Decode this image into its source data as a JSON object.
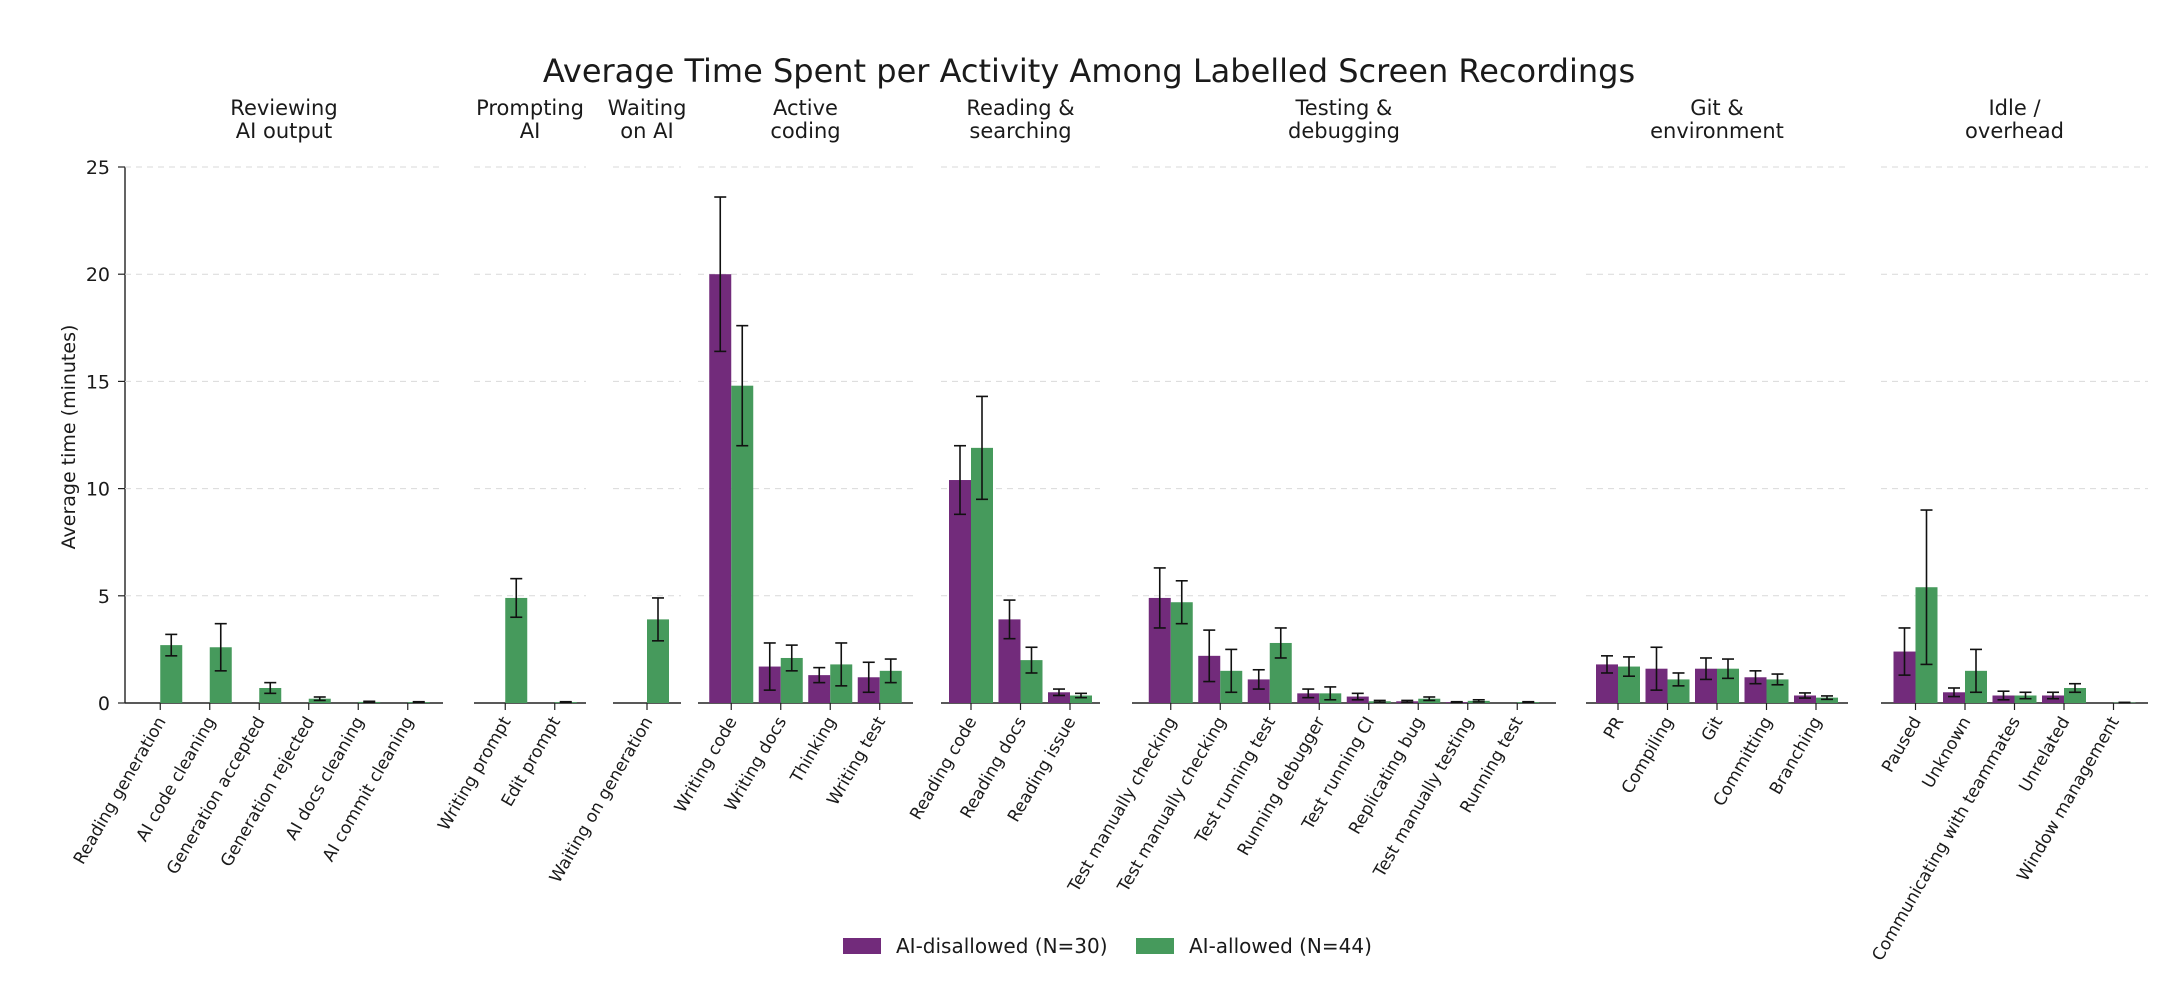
{
  "chart_data": {
    "type": "bar",
    "title": "Average Time Spent per Activity Among Labelled Screen Recordings",
    "ylabel": "Average time (minutes)",
    "ylim": [
      0,
      25
    ],
    "yticks": [
      0,
      5,
      10,
      15,
      20,
      25
    ],
    "grid": true,
    "legend_position": "bottom",
    "series": [
      {
        "name": "AI-disallowed (N=30)",
        "color": "#722b7b"
      },
      {
        "name": "AI-allowed (N=44)",
        "color": "#469a5c"
      }
    ],
    "groups": [
      {
        "title": [
          "Reviewing",
          "AI output"
        ],
        "categories": [
          "Reading generation",
          "AI code cleaning",
          "Generation accepted",
          "Generation rejected",
          "AI docs cleaning",
          "AI commit cleaning"
        ],
        "values": [
          [
            null,
            null,
            null,
            null,
            null,
            null
          ],
          [
            2.7,
            2.6,
            0.7,
            0.2,
            0.05,
            0.04
          ]
        ],
        "errors": [
          [
            null,
            null,
            null,
            null,
            null,
            null
          ],
          [
            0.5,
            1.1,
            0.25,
            0.08,
            0.03,
            0.02
          ]
        ]
      },
      {
        "title": [
          "Prompting",
          "AI"
        ],
        "categories": [
          "Writing prompt",
          "Edit prompt"
        ],
        "values": [
          [
            null,
            null
          ],
          [
            4.9,
            0.04
          ]
        ],
        "errors": [
          [
            null,
            null
          ],
          [
            0.9,
            0.02
          ]
        ]
      },
      {
        "title": [
          "Waiting",
          "on AI"
        ],
        "categories": [
          "Waiting on generation"
        ],
        "values": [
          [
            null
          ],
          [
            3.9
          ]
        ],
        "errors": [
          [
            null
          ],
          [
            1.0
          ]
        ]
      },
      {
        "title": [
          "Active",
          "coding"
        ],
        "categories": [
          "Writing code",
          "Writing docs",
          "Thinking",
          "Writing test"
        ],
        "values": [
          [
            20.0,
            1.7,
            1.3,
            1.2
          ],
          [
            14.8,
            2.1,
            1.8,
            1.5
          ]
        ],
        "errors": [
          [
            3.6,
            1.1,
            0.35,
            0.7
          ],
          [
            2.8,
            0.6,
            1.0,
            0.55
          ]
        ]
      },
      {
        "title": [
          "Reading &",
          "searching"
        ],
        "categories": [
          "Reading code",
          "Reading docs",
          "Reading issue"
        ],
        "values": [
          [
            10.4,
            3.9,
            0.5
          ],
          [
            11.9,
            2.0,
            0.35
          ]
        ],
        "errors": [
          [
            1.6,
            0.9,
            0.15
          ],
          [
            2.4,
            0.6,
            0.1
          ]
        ]
      },
      {
        "title": [
          "Testing &",
          "debugging"
        ],
        "categories": [
          "Test manually checking",
          "Test manually checking",
          "Test running test",
          "Running debugger",
          "Test running CI",
          "Replicating bug",
          "Test manually testing",
          "Running test"
        ],
        "values": [
          [
            4.9,
            2.2,
            1.1,
            0.45,
            0.3,
            0.08,
            0.04,
            0.0
          ],
          [
            4.7,
            1.5,
            2.8,
            0.45,
            0.08,
            0.2,
            0.1,
            0.04
          ]
        ],
        "errors": [
          [
            1.4,
            1.2,
            0.45,
            0.2,
            0.15,
            0.04,
            0.02,
            0.0
          ],
          [
            1.0,
            1.0,
            0.7,
            0.3,
            0.04,
            0.08,
            0.05,
            0.02
          ]
        ]
      },
      {
        "title": [
          "Git &",
          "environment"
        ],
        "categories": [
          "PR",
          "Compiling",
          "Git",
          "Committing",
          "Branching"
        ],
        "values": [
          [
            1.8,
            1.6,
            1.6,
            1.2,
            0.35
          ],
          [
            1.7,
            1.1,
            1.6,
            1.1,
            0.25
          ]
        ],
        "errors": [
          [
            0.4,
            1.0,
            0.5,
            0.3,
            0.12
          ],
          [
            0.45,
            0.3,
            0.45,
            0.25,
            0.08
          ]
        ]
      },
      {
        "title": [
          "Idle /",
          "overhead"
        ],
        "categories": [
          "Paused",
          "Unknown",
          "Communicating with teammates",
          "Unrelated",
          "Window management"
        ],
        "values": [
          [
            2.4,
            0.5,
            0.35,
            0.35,
            0.0
          ],
          [
            5.4,
            1.5,
            0.35,
            0.7,
            0.02
          ]
        ],
        "errors": [
          [
            1.1,
            0.2,
            0.2,
            0.15,
            0.0
          ],
          [
            3.6,
            1.0,
            0.15,
            0.2,
            0.01
          ]
        ]
      }
    ]
  }
}
